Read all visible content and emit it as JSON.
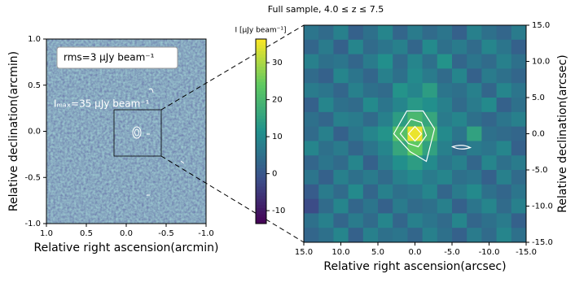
{
  "chart_data": [
    {
      "type": "image",
      "colormap": "viridis",
      "xlim": [
        1.0,
        -1.0
      ],
      "ylim": [
        -1.0,
        1.0
      ],
      "xticks": [
        {
          "value": 1.0,
          "label": "1.0"
        },
        {
          "value": 0.5,
          "label": "0.5"
        },
        {
          "value": 0.0,
          "label": "0.0"
        },
        {
          "value": -0.5,
          "label": "-0.5"
        },
        {
          "value": -1.0,
          "label": "-1.0"
        }
      ],
      "yticks": [
        {
          "value": 1.0,
          "label": "1.0"
        },
        {
          "value": 0.5,
          "label": "0.5"
        },
        {
          "value": 0.0,
          "label": "0.0"
        },
        {
          "value": -0.5,
          "label": "-0.5"
        },
        {
          "value": -1.0,
          "label": "-1.0"
        }
      ],
      "xlabel": "Relative right ascension(arcmin)",
      "ylabel": "Relative declination(arcmin)",
      "annotations": [
        "rms=3 μJy beam⁻¹",
        "Iₘₐₓ=35 μJy beam⁻¹"
      ],
      "clim": [
        -13.5,
        36.4
      ],
      "cticks": [
        30,
        20,
        10,
        0,
        -10
      ],
      "clabel": "I [μJy beam⁻¹]"
    },
    {
      "type": "heatmap",
      "colormap": "viridis",
      "title": "Full sample, 4.0 ≤ z ≤ 7.5",
      "xlim": [
        15.0,
        -15.0
      ],
      "ylim": [
        -15.0,
        15.0
      ],
      "clim": [
        -13.5,
        36.4
      ],
      "xticks": [
        {
          "value": 15,
          "label": "15.0"
        },
        {
          "value": 10,
          "label": "10.0"
        },
        {
          "value": 5,
          "label": "5.0"
        },
        {
          "value": 0,
          "label": "0.0"
        },
        {
          "value": -5,
          "label": "-5.0"
        },
        {
          "value": -10,
          "label": "-10.0"
        },
        {
          "value": -15,
          "label": "-15.0"
        }
      ],
      "yticks": [
        {
          "value": 15,
          "label": "15.0"
        },
        {
          "value": 10,
          "label": "10.0"
        },
        {
          "value": 5,
          "label": "5.0"
        },
        {
          "value": 0,
          "label": "0.0"
        },
        {
          "value": -5,
          "label": "-5.0"
        },
        {
          "value": -10,
          "label": "-10.0"
        },
        {
          "value": -15,
          "label": "-15.0"
        }
      ],
      "xlabel": "Relative right ascension(arcsec)",
      "ylabel": "Relative declination(arcsec)",
      "z": [
        [
          6,
          4,
          8,
          2,
          5,
          9,
          3,
          7,
          4,
          6,
          2,
          8,
          5,
          3,
          7
        ],
        [
          3,
          7,
          2,
          9,
          4,
          6,
          8,
          3,
          10,
          5,
          7,
          4,
          9,
          6,
          2
        ],
        [
          8,
          5,
          6,
          3,
          7,
          11,
          4,
          9,
          5,
          12,
          3,
          6,
          4,
          8,
          5
        ],
        [
          4,
          2,
          9,
          6,
          3,
          8,
          5,
          10,
          7,
          4,
          9,
          2,
          7,
          5,
          3
        ],
        [
          7,
          6,
          3,
          8,
          5,
          4,
          12,
          9,
          14,
          6,
          5,
          8,
          3,
          9,
          6
        ],
        [
          2,
          9,
          5,
          4,
          10,
          6,
          9,
          13,
          11,
          8,
          4,
          7,
          10,
          2,
          5
        ],
        [
          5,
          3,
          8,
          7,
          4,
          8,
          14,
          20,
          16,
          7,
          9,
          5,
          3,
          6,
          8
        ],
        [
          4,
          8,
          2,
          6,
          9,
          12,
          22,
          35,
          21,
          10,
          6,
          15,
          5,
          4,
          3
        ],
        [
          9,
          5,
          7,
          3,
          6,
          9,
          16,
          24,
          15,
          8,
          4,
          7,
          6,
          9,
          2
        ],
        [
          3,
          6,
          4,
          9,
          2,
          7,
          11,
          14,
          10,
          6,
          8,
          3,
          9,
          5,
          7
        ],
        [
          6,
          2,
          8,
          5,
          7,
          4,
          8,
          10,
          7,
          9,
          5,
          6,
          2,
          8,
          4
        ],
        [
          1,
          7,
          4,
          10,
          3,
          8,
          5,
          6,
          9,
          3,
          7,
          10,
          5,
          3,
          6
        ],
        [
          -2,
          4,
          9,
          3,
          6,
          2,
          7,
          4,
          5,
          8,
          2,
          6,
          9,
          4,
          8
        ],
        [
          5,
          8,
          3,
          7,
          4,
          9,
          3,
          8,
          6,
          4,
          9,
          3,
          5,
          7,
          2
        ],
        [
          3,
          5,
          9,
          2,
          8,
          5,
          6,
          3,
          8,
          5,
          2,
          7,
          4,
          9,
          5
        ]
      ]
    }
  ]
}
